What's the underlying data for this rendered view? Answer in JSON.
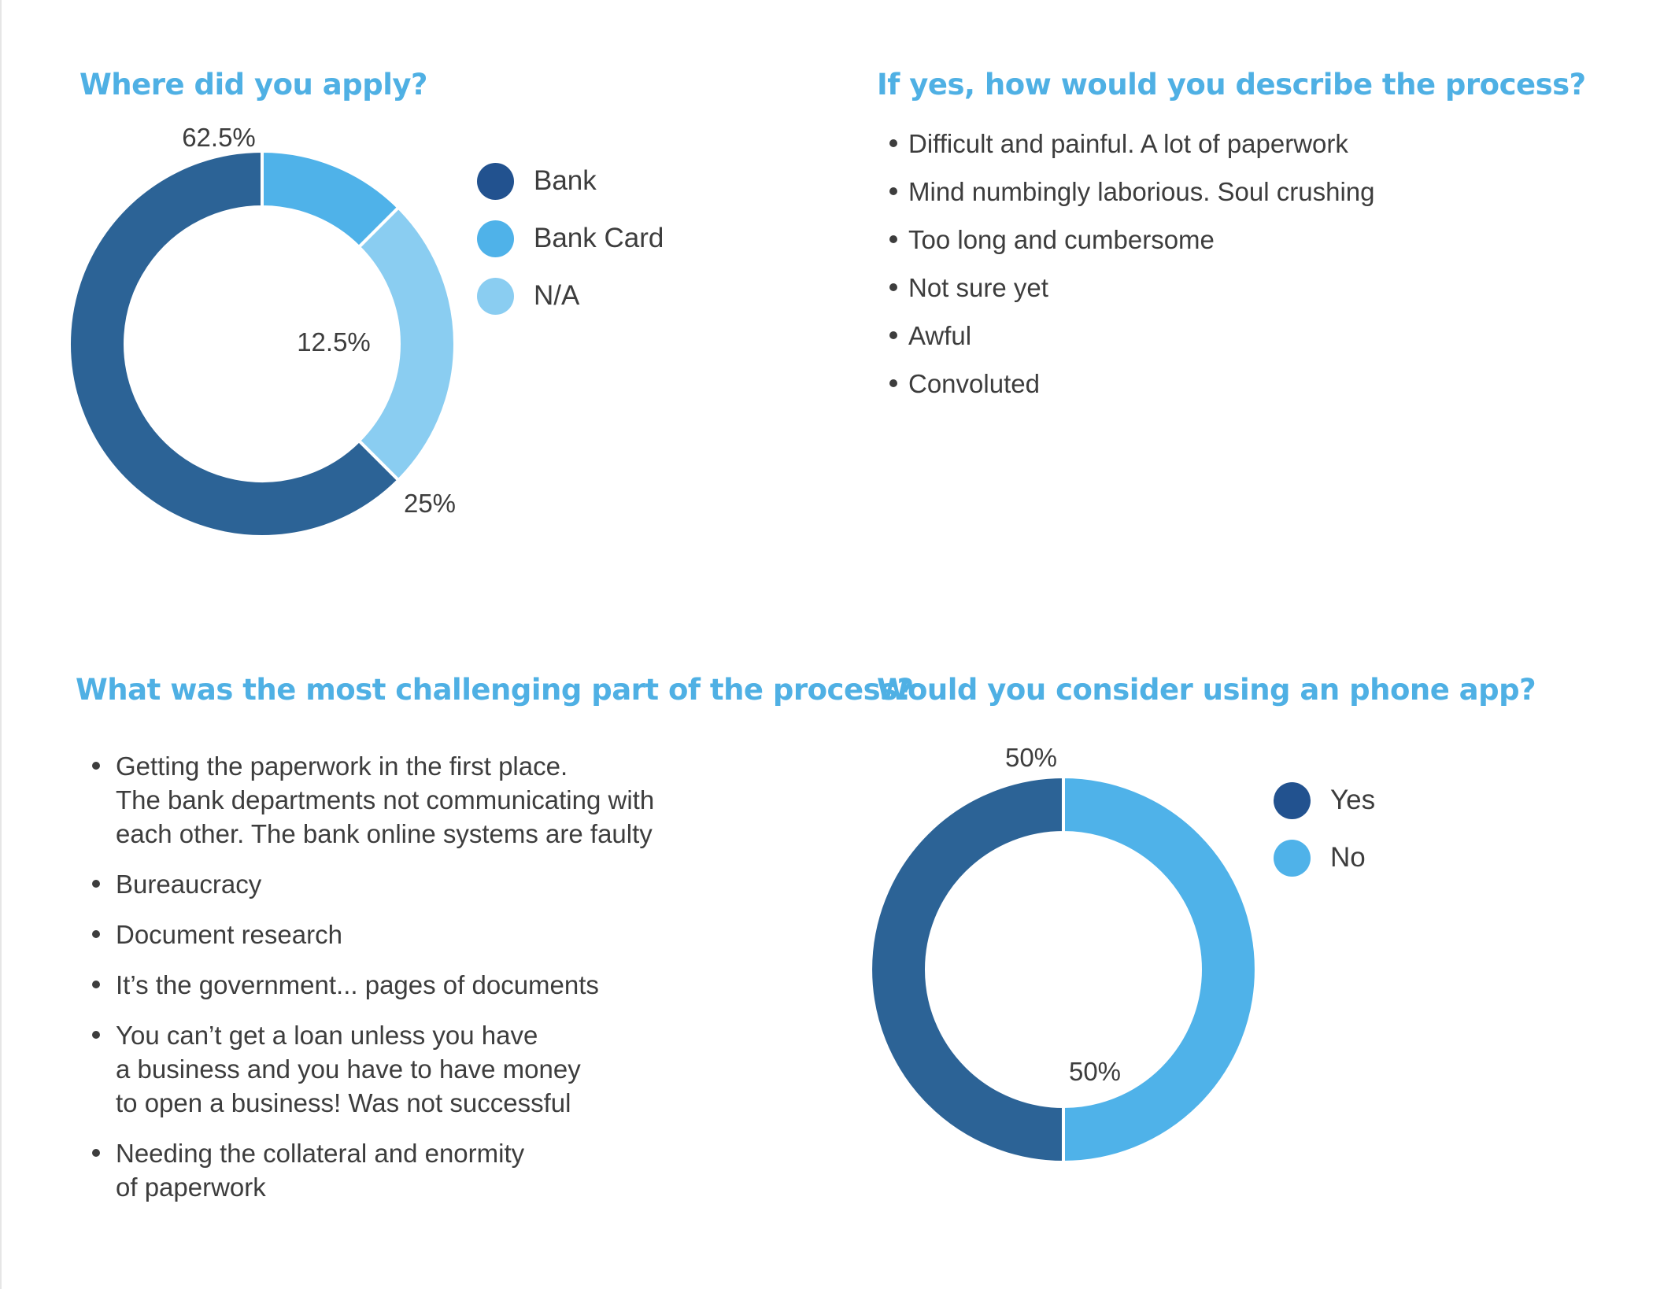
{
  "colors": {
    "title": "#4fb0e4",
    "text": "#3d3d3d",
    "bank": "#2c6396",
    "bank_card": "#4fb2e9",
    "na": "#8acdf1",
    "legend_dark": "#22528f"
  },
  "q1": {
    "title": "Where did you apply?"
  },
  "q2": {
    "title": "If yes, how would you describe the process?",
    "items": [
      "Difficult and painful. A lot of paperwork",
      "Mind numbingly laborious. Soul crushing",
      "Too long and cumbersome",
      "Not sure yet",
      "Awful",
      "Convoluted"
    ]
  },
  "q3": {
    "title": "What was the most challenging part of the process?",
    "items": [
      [
        "Getting the paperwork in the first place.",
        "The bank departments not communicating with",
        "each other. The bank online systems are faulty"
      ],
      [
        "Bureaucracy"
      ],
      [
        "Document research"
      ],
      [
        "It’s the government... pages of documents"
      ],
      [
        "You can’t get a loan unless you have",
        "a business and you have to have money",
        "to open a business! Was not successful"
      ],
      [
        "Needing the collateral and enormity",
        "of paperwork"
      ]
    ]
  },
  "q4": {
    "title": "Would you consider using an phone app?"
  },
  "chart_data": [
    {
      "type": "pie",
      "title": "Where did you apply?",
      "categories": [
        "Bank",
        "Bank Card",
        "N/A"
      ],
      "values": [
        62.5,
        12.5,
        25
      ],
      "labels": [
        "62.5%",
        "12.5%",
        "25%"
      ],
      "legend_position": "right",
      "style": "donut"
    },
    {
      "type": "pie",
      "title": "Would you consider using an phone app?",
      "categories": [
        "Yes",
        "No"
      ],
      "values": [
        50,
        50
      ],
      "labels": [
        "50%",
        "50%"
      ],
      "legend_position": "right",
      "style": "donut"
    }
  ]
}
